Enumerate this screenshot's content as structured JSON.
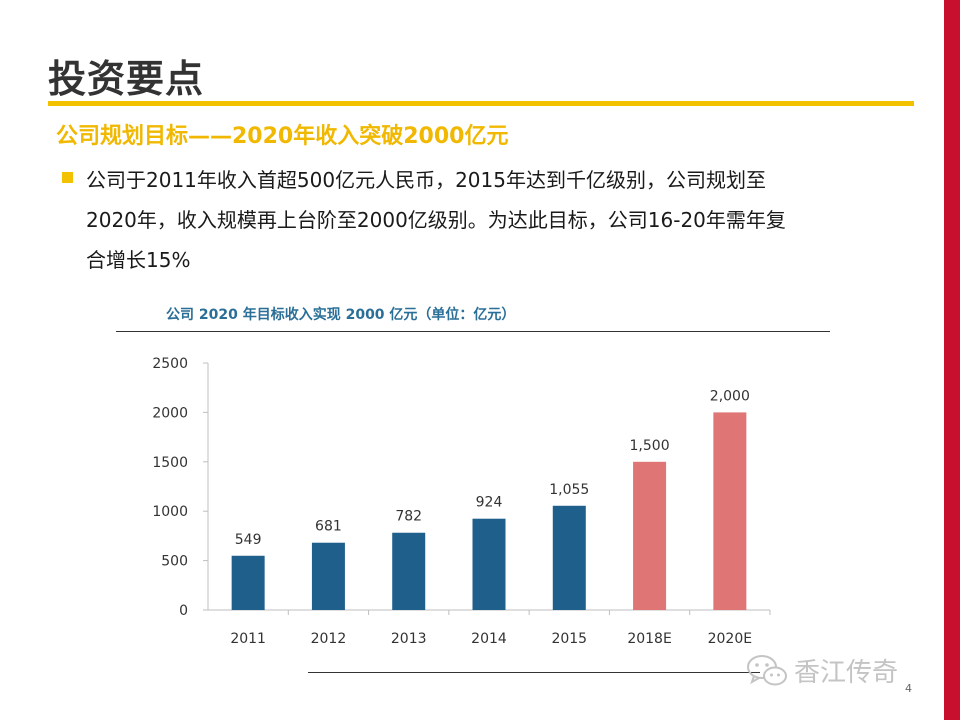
{
  "slide": {
    "title": "投资要点",
    "subtitle": "公司规划目标——2020年收入突破2000亿元",
    "bullet_lines": [
      "公司于2011年收入首超500亿元人民币，2015年达到千亿级别，公司规划至",
      "2020年，收入规模再上台阶至2000亿级别。为达此目标，公司16-20年需年复",
      "合增长15%"
    ],
    "page_number": "4",
    "watermark": "香江传奇"
  },
  "colors": {
    "accent_yellow": "#f2c100",
    "brand_red": "#c8102e",
    "actual_bar": "#1f5f8b",
    "target_bar": "#e07575",
    "chart_title": "#2a6f97"
  },
  "chart_data": {
    "type": "bar",
    "title": "公司 2020 年目标收入实现 2000 亿元（单位：亿元）",
    "categories": [
      "2011",
      "2012",
      "2013",
      "2014",
      "2015",
      "2018E",
      "2020E"
    ],
    "values": [
      549,
      681,
      782,
      924,
      1055,
      1500,
      2000
    ],
    "value_labels": [
      "549",
      "681",
      "782",
      "924",
      "1,055",
      "1,500",
      "2,000"
    ],
    "series_kind": [
      "actual",
      "actual",
      "actual",
      "actual",
      "actual",
      "target",
      "target"
    ],
    "y_ticks": [
      0,
      500,
      1000,
      1500,
      2000,
      2500
    ],
    "ylim": [
      0,
      2500
    ],
    "xlabel": "",
    "ylabel": "",
    "grid": false,
    "legend": "none"
  }
}
